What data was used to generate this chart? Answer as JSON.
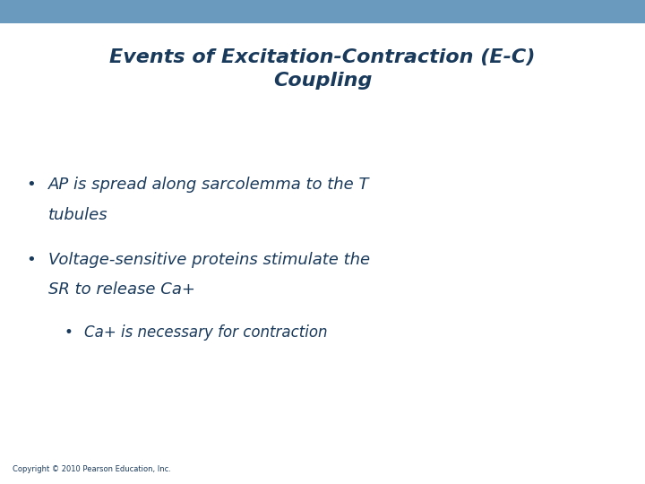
{
  "title_line1": "Events of Excitation-Contraction (E-C)",
  "title_line2": "Coupling",
  "title_color": "#1a3a5c",
  "title_fontsize": 16,
  "background_color": "#ffffff",
  "header_bar_color": "#6a9bbf",
  "header_bar_height": 0.048,
  "bullet1_text_line1": "AP is spread along sarcolemma to the T",
  "bullet1_text_line2": "tubules",
  "bullet2_text_line1": "Voltage-sensitive proteins stimulate the",
  "bullet2_text_line2": "SR to release Ca+",
  "sub_bullet_text": "Ca+ is necessary for contraction",
  "bullet_color": "#1a3a5c",
  "body_fontsize": 13,
  "sub_fontsize": 12,
  "copyright_text": "Copyright © 2010 Pearson Education, Inc.",
  "copyright_fontsize": 6
}
